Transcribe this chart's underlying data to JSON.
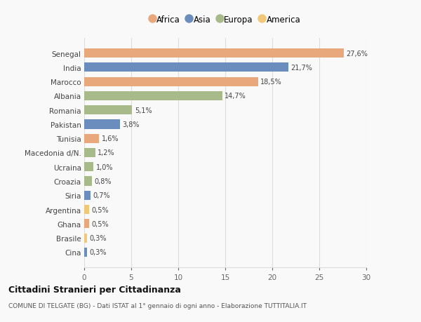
{
  "countries": [
    "Senegal",
    "India",
    "Marocco",
    "Albania",
    "Romania",
    "Pakistan",
    "Tunisia",
    "Macedonia d/N.",
    "Ucraina",
    "Croazia",
    "Siria",
    "Argentina",
    "Ghana",
    "Brasile",
    "Cina"
  ],
  "values": [
    27.6,
    21.7,
    18.5,
    14.7,
    5.1,
    3.8,
    1.6,
    1.2,
    1.0,
    0.8,
    0.7,
    0.5,
    0.5,
    0.3,
    0.3
  ],
  "labels": [
    "27,6%",
    "21,7%",
    "18,5%",
    "14,7%",
    "5,1%",
    "3,8%",
    "1,6%",
    "1,2%",
    "1,0%",
    "0,8%",
    "0,7%",
    "0,5%",
    "0,5%",
    "0,3%",
    "0,3%"
  ],
  "continents": [
    "Africa",
    "Asia",
    "Africa",
    "Europa",
    "Europa",
    "Asia",
    "Africa",
    "Europa",
    "Europa",
    "Europa",
    "Asia",
    "America",
    "Africa",
    "America",
    "Asia"
  ],
  "colors": {
    "Africa": "#E8A87C",
    "Asia": "#6B8DBE",
    "Europa": "#A8BA8A",
    "America": "#F0C878"
  },
  "legend_order": [
    "Africa",
    "Asia",
    "Europa",
    "America"
  ],
  "xlim": [
    0,
    30
  ],
  "xticks": [
    0,
    5,
    10,
    15,
    20,
    25,
    30
  ],
  "title": "Cittadini Stranieri per Cittadinanza",
  "subtitle": "COMUNE DI TELGATE (BG) - Dati ISTAT al 1° gennaio di ogni anno - Elaborazione TUTTITALIA.IT",
  "background_color": "#f9f9f9",
  "grid_color": "#dddddd",
  "bar_height": 0.65
}
